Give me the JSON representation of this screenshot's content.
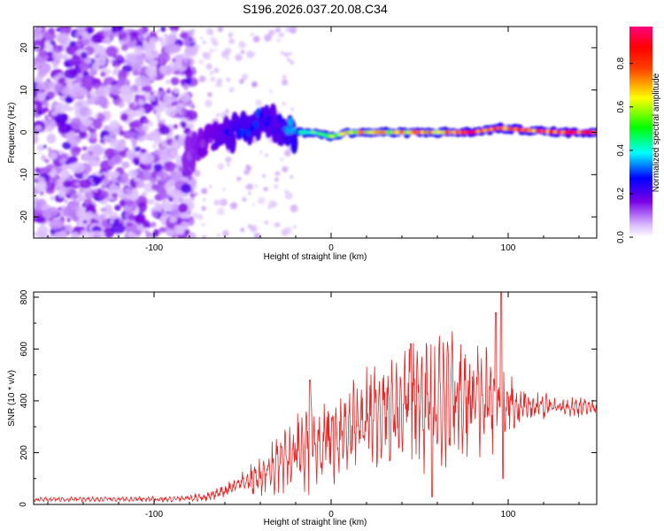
{
  "title": "S196.2026.037.20.08.C34",
  "chart_data": [
    {
      "type": "heatmap",
      "title": "S196.2026.037.20.08.C34",
      "xlabel": "Height of straight line (km)",
      "ylabel": "Frequency (Hz)",
      "xlim": [
        -168,
        150
      ],
      "ylim": [
        -25,
        25
      ],
      "xticks": [
        -100,
        0,
        100
      ],
      "yticks": [
        -20,
        -10,
        0,
        10,
        20
      ],
      "colorbar": {
        "label": "Normalized spectral amplitude",
        "range": [
          0,
          0.97
        ],
        "ticks": [
          0.0,
          0.2,
          0.4,
          0.6,
          0.8
        ],
        "tick_labels": [
          "0.0",
          "0.2",
          "0.4",
          "0.6",
          "0.8"
        ]
      },
      "trace": {
        "description_points_x": [
          -80,
          -70,
          -60,
          -50,
          -40,
          -30,
          -20,
          -10,
          0,
          10,
          20,
          40,
          60,
          80,
          95,
          110,
          130,
          150
        ],
        "description_points_y": [
          -5,
          -3,
          0,
          1,
          3,
          2,
          0,
          0,
          -1,
          0,
          0,
          0,
          0,
          0,
          1,
          0.5,
          0,
          0
        ],
        "amplitudes": [
          0.15,
          0.2,
          0.25,
          0.3,
          0.3,
          0.25,
          0.4,
          0.5,
          0.55,
          0.65,
          0.7,
          0.75,
          0.8,
          0.85,
          0.9,
          0.85,
          0.9,
          0.95
        ]
      }
    },
    {
      "type": "line",
      "xlabel": "Height of straight line (km)",
      "ylabel": "SNR (10 * v/v)",
      "xlim": [
        -168,
        150
      ],
      "ylim": [
        0,
        820
      ],
      "xticks": [
        -100,
        0,
        100
      ],
      "yticks": [
        0,
        200,
        400,
        600,
        800
      ],
      "color": "#ee2020",
      "envelope_x": [
        -168,
        -120,
        -90,
        -70,
        -60,
        -50,
        -40,
        -30,
        -20,
        -10,
        0,
        10,
        20,
        30,
        40,
        50,
        60,
        70,
        80,
        90,
        100,
        110,
        120,
        130,
        140,
        150
      ],
      "envelope_base": [
        20,
        20,
        20,
        30,
        50,
        80,
        110,
        150,
        180,
        230,
        260,
        300,
        330,
        360,
        380,
        390,
        400,
        400,
        400,
        400,
        390,
        380,
        380,
        375,
        375,
        375
      ],
      "envelope_amp": [
        8,
        8,
        10,
        15,
        25,
        40,
        70,
        100,
        140,
        170,
        160,
        150,
        170,
        190,
        210,
        220,
        230,
        220,
        200,
        180,
        120,
        60,
        45,
        35,
        35,
        30
      ],
      "peaks": [
        {
          "x": -12,
          "y": 480
        },
        {
          "x": 45,
          "y": 620
        },
        {
          "x": 57,
          "y": 30
        },
        {
          "x": 93,
          "y": 740
        },
        {
          "x": 96,
          "y": 820
        },
        {
          "x": 97,
          "y": 100
        }
      ]
    }
  ]
}
